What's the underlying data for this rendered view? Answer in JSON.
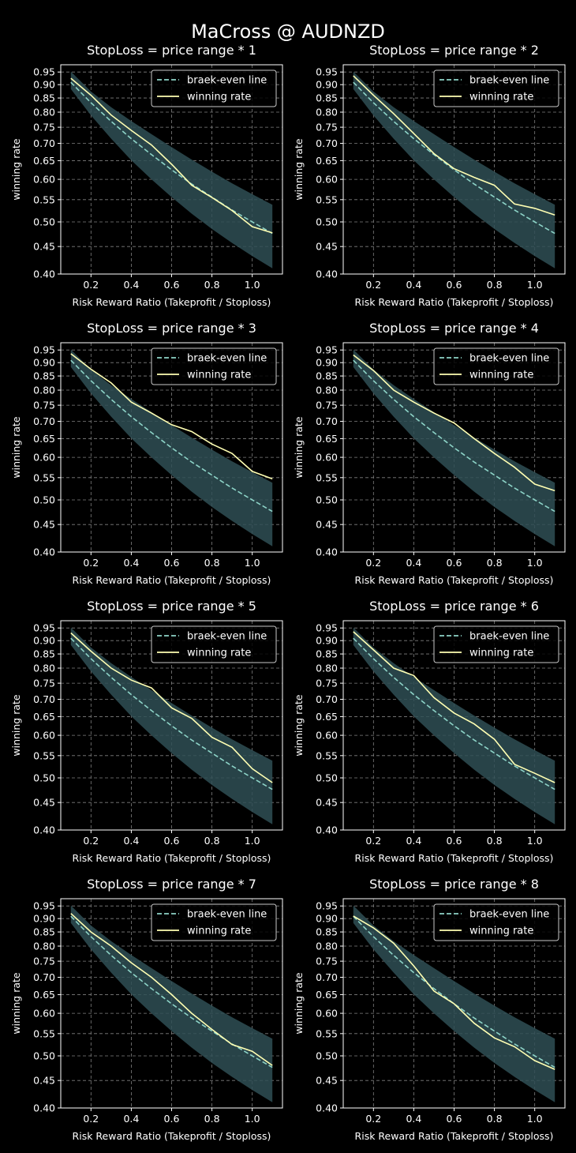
{
  "figure": {
    "suptitle": "MaCross @ AUDNZD",
    "colors": {
      "background": "#000000",
      "break_even": "#8dd3c7",
      "winning": "#ffffb3",
      "band": "#2f4f55",
      "grid": "#7f7f7f"
    }
  },
  "chart_data": [
    {
      "type": "line",
      "title": "StopLoss = price range * 1",
      "xlabel": "Risk Reward Ratio (Takeprofit / Stoploss)",
      "ylabel": "winning rate",
      "x": [
        0.1,
        0.2,
        0.3,
        0.4,
        0.5,
        0.6,
        0.7,
        0.8,
        0.9,
        1.0,
        1.1
      ],
      "xticks": [
        "0.2",
        "0.4",
        "0.6",
        "0.8",
        "1.0"
      ],
      "yticks": [
        "0.40",
        "0.45",
        "0.50",
        "0.55",
        "0.60",
        "0.65",
        "0.70",
        "0.75",
        "0.80",
        "0.85",
        "0.90",
        "0.95"
      ],
      "xlim": [
        0.05,
        1.15
      ],
      "ylim": [
        0.4,
        0.98
      ],
      "yscale": "log",
      "grid": true,
      "legend": "top-right",
      "band": {
        "lower": [
          0.883,
          0.789,
          0.714,
          0.651,
          0.6,
          0.556,
          0.518,
          0.485,
          0.457,
          0.432,
          0.41
        ],
        "upper": [
          0.952,
          0.874,
          0.817,
          0.77,
          0.728,
          0.689,
          0.653,
          0.62,
          0.59,
          0.563,
          0.538
        ]
      },
      "series": [
        {
          "name": "braek-even line",
          "style": "dashed",
          "values": [
            0.909,
            0.833,
            0.769,
            0.714,
            0.667,
            0.625,
            0.588,
            0.556,
            0.526,
            0.5,
            0.476
          ]
        },
        {
          "name": "winning rate",
          "style": "solid",
          "values": [
            0.925,
            0.86,
            0.79,
            0.74,
            0.695,
            0.64,
            0.585,
            0.555,
            0.525,
            0.49,
            0.477
          ]
        }
      ]
    },
    {
      "type": "line",
      "title": "StopLoss = price range * 2",
      "xlabel": "Risk Reward Ratio (Takeprofit / Stoploss)",
      "ylabel": "winning rate",
      "x": [
        0.1,
        0.2,
        0.3,
        0.4,
        0.5,
        0.6,
        0.7,
        0.8,
        0.9,
        1.0,
        1.1
      ],
      "xticks": [
        "0.2",
        "0.4",
        "0.6",
        "0.8",
        "1.0"
      ],
      "yticks": [
        "0.40",
        "0.45",
        "0.50",
        "0.55",
        "0.60",
        "0.65",
        "0.70",
        "0.75",
        "0.80",
        "0.85",
        "0.90",
        "0.95"
      ],
      "xlim": [
        0.05,
        1.15
      ],
      "ylim": [
        0.4,
        0.98
      ],
      "yscale": "log",
      "grid": true,
      "legend": "top-right",
      "band": {
        "lower": [
          0.883,
          0.789,
          0.714,
          0.651,
          0.6,
          0.556,
          0.518,
          0.485,
          0.457,
          0.432,
          0.41
        ],
        "upper": [
          0.952,
          0.874,
          0.817,
          0.77,
          0.728,
          0.689,
          0.653,
          0.62,
          0.59,
          0.563,
          0.538
        ]
      },
      "series": [
        {
          "name": "braek-even line",
          "style": "dashed",
          "values": [
            0.909,
            0.833,
            0.769,
            0.714,
            0.667,
            0.625,
            0.588,
            0.556,
            0.526,
            0.5,
            0.476
          ]
        },
        {
          "name": "winning rate",
          "style": "solid",
          "values": [
            0.935,
            0.86,
            0.795,
            0.73,
            0.67,
            0.628,
            0.605,
            0.585,
            0.54,
            0.53,
            0.515
          ]
        }
      ]
    },
    {
      "type": "line",
      "title": "StopLoss = price range * 3",
      "xlabel": "Risk Reward Ratio (Takeprofit / Stoploss)",
      "ylabel": "winning rate",
      "x": [
        0.1,
        0.2,
        0.3,
        0.4,
        0.5,
        0.6,
        0.7,
        0.8,
        0.9,
        1.0,
        1.1
      ],
      "xticks": [
        "0.2",
        "0.4",
        "0.6",
        "0.8",
        "1.0"
      ],
      "yticks": [
        "0.40",
        "0.45",
        "0.50",
        "0.55",
        "0.60",
        "0.65",
        "0.70",
        "0.75",
        "0.80",
        "0.85",
        "0.90",
        "0.95"
      ],
      "xlim": [
        0.05,
        1.15
      ],
      "ylim": [
        0.4,
        0.98
      ],
      "yscale": "log",
      "grid": true,
      "legend": "top-right",
      "band": {
        "lower": [
          0.883,
          0.789,
          0.714,
          0.651,
          0.6,
          0.556,
          0.518,
          0.485,
          0.457,
          0.432,
          0.41
        ],
        "upper": [
          0.952,
          0.874,
          0.817,
          0.77,
          0.728,
          0.689,
          0.653,
          0.62,
          0.59,
          0.563,
          0.538
        ]
      },
      "series": [
        {
          "name": "braek-even line",
          "style": "dashed",
          "values": [
            0.909,
            0.833,
            0.769,
            0.714,
            0.667,
            0.625,
            0.588,
            0.556,
            0.526,
            0.5,
            0.476
          ]
        },
        {
          "name": "winning rate",
          "style": "solid",
          "values": [
            0.935,
            0.875,
            0.825,
            0.76,
            0.725,
            0.69,
            0.67,
            0.635,
            0.61,
            0.565,
            0.547
          ]
        }
      ]
    },
    {
      "type": "line",
      "title": "StopLoss = price range * 4",
      "xlabel": "Risk Reward Ratio (Takeprofit / Stoploss)",
      "ylabel": "winning rate",
      "x": [
        0.1,
        0.2,
        0.3,
        0.4,
        0.5,
        0.6,
        0.7,
        0.8,
        0.9,
        1.0,
        1.1
      ],
      "xticks": [
        "0.2",
        "0.4",
        "0.6",
        "0.8",
        "1.0"
      ],
      "yticks": [
        "0.40",
        "0.45",
        "0.50",
        "0.55",
        "0.60",
        "0.65",
        "0.70",
        "0.75",
        "0.80",
        "0.85",
        "0.90",
        "0.95"
      ],
      "xlim": [
        0.05,
        1.15
      ],
      "ylim": [
        0.4,
        0.98
      ],
      "yscale": "log",
      "grid": true,
      "legend": "top-right",
      "band": {
        "lower": [
          0.883,
          0.789,
          0.714,
          0.651,
          0.6,
          0.556,
          0.518,
          0.485,
          0.457,
          0.432,
          0.41
        ],
        "upper": [
          0.952,
          0.874,
          0.817,
          0.77,
          0.728,
          0.689,
          0.653,
          0.62,
          0.59,
          0.563,
          0.538
        ]
      },
      "series": [
        {
          "name": "braek-even line",
          "style": "dashed",
          "values": [
            0.909,
            0.833,
            0.769,
            0.714,
            0.667,
            0.625,
            0.588,
            0.556,
            0.526,
            0.5,
            0.476
          ]
        },
        {
          "name": "winning rate",
          "style": "solid",
          "values": [
            0.93,
            0.87,
            0.8,
            0.76,
            0.725,
            0.695,
            0.65,
            0.61,
            0.575,
            0.535,
            0.52
          ]
        }
      ]
    },
    {
      "type": "line",
      "title": "StopLoss = price range * 5",
      "xlabel": "Risk Reward Ratio (Takeprofit / Stoploss)",
      "ylabel": "winning rate",
      "x": [
        0.1,
        0.2,
        0.3,
        0.4,
        0.5,
        0.6,
        0.7,
        0.8,
        0.9,
        1.0,
        1.1
      ],
      "xticks": [
        "0.2",
        "0.4",
        "0.6",
        "0.8",
        "1.0"
      ],
      "yticks": [
        "0.40",
        "0.45",
        "0.50",
        "0.55",
        "0.60",
        "0.65",
        "0.70",
        "0.75",
        "0.80",
        "0.85",
        "0.90",
        "0.95"
      ],
      "xlim": [
        0.05,
        1.15
      ],
      "ylim": [
        0.4,
        0.98
      ],
      "yscale": "log",
      "grid": true,
      "legend": "top-right",
      "band": {
        "lower": [
          0.883,
          0.789,
          0.714,
          0.651,
          0.6,
          0.556,
          0.518,
          0.485,
          0.457,
          0.432,
          0.41
        ],
        "upper": [
          0.952,
          0.874,
          0.817,
          0.77,
          0.728,
          0.689,
          0.653,
          0.62,
          0.59,
          0.563,
          0.538
        ]
      },
      "series": [
        {
          "name": "braek-even line",
          "style": "dashed",
          "values": [
            0.909,
            0.833,
            0.769,
            0.714,
            0.667,
            0.625,
            0.588,
            0.556,
            0.526,
            0.5,
            0.476
          ]
        },
        {
          "name": "winning rate",
          "style": "solid",
          "values": [
            0.93,
            0.86,
            0.8,
            0.76,
            0.735,
            0.675,
            0.645,
            0.595,
            0.57,
            0.52,
            0.49
          ]
        }
      ]
    },
    {
      "type": "line",
      "title": "StopLoss = price range * 6",
      "xlabel": "Risk Reward Ratio (Takeprofit / Stoploss)",
      "ylabel": "winning rate",
      "x": [
        0.1,
        0.2,
        0.3,
        0.4,
        0.5,
        0.6,
        0.7,
        0.8,
        0.9,
        1.0,
        1.1
      ],
      "xticks": [
        "0.2",
        "0.4",
        "0.6",
        "0.8",
        "1.0"
      ],
      "yticks": [
        "0.40",
        "0.45",
        "0.50",
        "0.55",
        "0.60",
        "0.65",
        "0.70",
        "0.75",
        "0.80",
        "0.85",
        "0.90",
        "0.95"
      ],
      "xlim": [
        0.05,
        1.15
      ],
      "ylim": [
        0.4,
        0.98
      ],
      "yscale": "log",
      "grid": true,
      "legend": "top-right",
      "band": {
        "lower": [
          0.883,
          0.789,
          0.714,
          0.651,
          0.6,
          0.556,
          0.518,
          0.485,
          0.457,
          0.432,
          0.41
        ],
        "upper": [
          0.952,
          0.874,
          0.817,
          0.77,
          0.728,
          0.689,
          0.653,
          0.62,
          0.59,
          0.563,
          0.538
        ]
      },
      "series": [
        {
          "name": "braek-even line",
          "style": "dashed",
          "values": [
            0.909,
            0.833,
            0.769,
            0.714,
            0.667,
            0.625,
            0.588,
            0.556,
            0.526,
            0.5,
            0.476
          ]
        },
        {
          "name": "winning rate",
          "style": "solid",
          "values": [
            0.935,
            0.865,
            0.8,
            0.775,
            0.705,
            0.66,
            0.63,
            0.59,
            0.53,
            0.51,
            0.49
          ]
        }
      ]
    },
    {
      "type": "line",
      "title": "StopLoss = price range * 7",
      "xlabel": "Risk Reward Ratio (Takeprofit / Stoploss)",
      "ylabel": "winning rate",
      "x": [
        0.1,
        0.2,
        0.3,
        0.4,
        0.5,
        0.6,
        0.7,
        0.8,
        0.9,
        1.0,
        1.1
      ],
      "xticks": [
        "0.2",
        "0.4",
        "0.6",
        "0.8",
        "1.0"
      ],
      "yticks": [
        "0.40",
        "0.45",
        "0.50",
        "0.55",
        "0.60",
        "0.65",
        "0.70",
        "0.75",
        "0.80",
        "0.85",
        "0.90",
        "0.95"
      ],
      "xlim": [
        0.05,
        1.15
      ],
      "ylim": [
        0.4,
        0.98
      ],
      "yscale": "log",
      "grid": true,
      "legend": "top-right",
      "band": {
        "lower": [
          0.883,
          0.789,
          0.714,
          0.651,
          0.6,
          0.556,
          0.518,
          0.485,
          0.457,
          0.432,
          0.41
        ],
        "upper": [
          0.952,
          0.874,
          0.817,
          0.77,
          0.728,
          0.689,
          0.653,
          0.62,
          0.59,
          0.563,
          0.538
        ]
      },
      "series": [
        {
          "name": "braek-even line",
          "style": "dashed",
          "values": [
            0.909,
            0.833,
            0.769,
            0.714,
            0.667,
            0.625,
            0.588,
            0.556,
            0.526,
            0.5,
            0.476
          ]
        },
        {
          "name": "winning rate",
          "style": "solid",
          "values": [
            0.92,
            0.85,
            0.8,
            0.745,
            0.7,
            0.65,
            0.6,
            0.56,
            0.525,
            0.51,
            0.48
          ]
        }
      ]
    },
    {
      "type": "line",
      "title": "StopLoss = price range * 8",
      "xlabel": "Risk Reward Ratio (Takeprofit / Stoploss)",
      "ylabel": "winning rate",
      "x": [
        0.1,
        0.2,
        0.3,
        0.4,
        0.5,
        0.6,
        0.7,
        0.8,
        0.9,
        1.0,
        1.1
      ],
      "xticks": [
        "0.2",
        "0.4",
        "0.6",
        "0.8",
        "1.0"
      ],
      "yticks": [
        "0.40",
        "0.45",
        "0.50",
        "0.55",
        "0.60",
        "0.65",
        "0.70",
        "0.75",
        "0.80",
        "0.85",
        "0.90",
        "0.95"
      ],
      "xlim": [
        0.05,
        1.15
      ],
      "ylim": [
        0.4,
        0.98
      ],
      "yscale": "log",
      "grid": true,
      "legend": "top-right",
      "band": {
        "lower": [
          0.883,
          0.789,
          0.714,
          0.651,
          0.6,
          0.556,
          0.518,
          0.485,
          0.457,
          0.432,
          0.41
        ],
        "upper": [
          0.952,
          0.874,
          0.817,
          0.77,
          0.728,
          0.689,
          0.653,
          0.62,
          0.59,
          0.563,
          0.538
        ]
      },
      "series": [
        {
          "name": "braek-even line",
          "style": "dashed",
          "values": [
            0.909,
            0.833,
            0.769,
            0.714,
            0.667,
            0.625,
            0.588,
            0.556,
            0.526,
            0.5,
            0.476
          ]
        },
        {
          "name": "winning rate",
          "style": "solid",
          "values": [
            0.91,
            0.865,
            0.81,
            0.735,
            0.66,
            0.625,
            0.575,
            0.54,
            0.52,
            0.49,
            0.472
          ]
        }
      ]
    }
  ]
}
